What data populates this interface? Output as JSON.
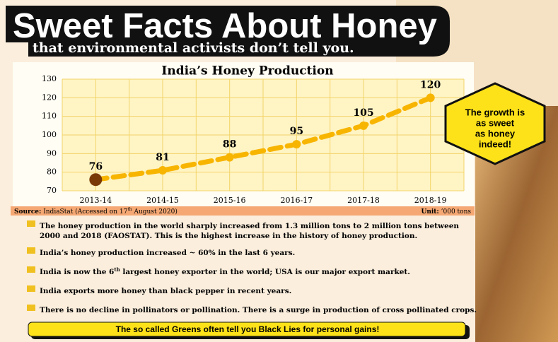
{
  "header": {
    "title": "Sweet Facts About Honey",
    "subtitle": "that environmental activists don’t tell you."
  },
  "chart_data": {
    "type": "line",
    "title": "India’s Honey Production",
    "categories": [
      "2013-14",
      "2014-15",
      "2015-16",
      "2016-17",
      "2017-18",
      "2018-19"
    ],
    "values": [
      76,
      81,
      88,
      95,
      105,
      120
    ],
    "color": "#f7b500",
    "ylim": [
      70,
      130
    ],
    "yticks": [
      70,
      80,
      90,
      100,
      110,
      120,
      130
    ],
    "grid": true
  },
  "source": {
    "label": "Source:",
    "parts": [
      "IndiaStat (Accessed on 17",
      "th",
      " August 2020)"
    ]
  },
  "unit": {
    "label": "Unit:",
    "text": "’000 tons"
  },
  "callout": [
    "The growth is",
    "as sweet",
    "as honey",
    "indeed!"
  ],
  "bullets": {
    "b1": [
      "The honey production in the world sharply increased from 1.3 million tons  to 2 million tons between",
      "2000 and 2018 (FAOSTAT). This is the highest increase in the history of honey production."
    ],
    "b2": "India’s honey production increased ~ 60% in the last 6 years.",
    "b3": [
      "India is now the 6",
      "th",
      " largest honey exporter in the world; USA is our major export market."
    ],
    "b4": "India exports more honey than black pepper in recent years.",
    "b5": "There is no decline in pollinators or pollination. There is a surge in production of cross pollinated crops."
  },
  "footer": "The so called Greens often tell you Black Lies for personal gains!"
}
